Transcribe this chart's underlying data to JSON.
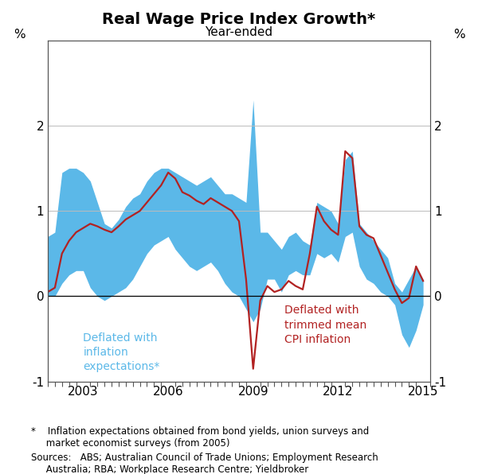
{
  "title": "Real Wage Price Index Growth*",
  "subtitle": "Year-ended",
  "ylabel_left": "%",
  "ylabel_right": "%",
  "ylim": [
    -1,
    3
  ],
  "yticks": [
    -1,
    0,
    1,
    2
  ],
  "footnote1": "*    Inflation expectations obtained from bond yields, union surveys and\n     market economist surveys (from 2005)",
  "footnote2": "Sources:   ABS; Australian Council of Trade Unions; Employment Research\n     Australia; RBA; Workplace Research Centre; Yieldbroker",
  "band_color": "#5BB8E8",
  "line_color": "#B22222",
  "label_blue": "Deflated with\ninflation\nexpectations*",
  "label_red": "Deflated with\ntrimmed mean\nCPI inflation",
  "dates_band": [
    2001.75,
    2002.0,
    2002.25,
    2002.5,
    2002.75,
    2003.0,
    2003.25,
    2003.5,
    2003.75,
    2004.0,
    2004.25,
    2004.5,
    2004.75,
    2005.0,
    2005.25,
    2005.5,
    2005.75,
    2006.0,
    2006.25,
    2006.5,
    2006.75,
    2007.0,
    2007.25,
    2007.5,
    2007.75,
    2008.0,
    2008.25,
    2008.5,
    2008.75,
    2009.0,
    2009.25,
    2009.5,
    2009.75,
    2010.0,
    2010.25,
    2010.5,
    2010.75,
    2011.0,
    2011.25,
    2011.5,
    2011.75,
    2012.0,
    2012.25,
    2012.5,
    2012.75,
    2013.0,
    2013.25,
    2013.5,
    2013.75,
    2014.0,
    2014.25,
    2014.5,
    2014.75,
    2015.0
  ],
  "band_upper": [
    0.7,
    0.75,
    1.45,
    1.5,
    1.5,
    1.45,
    1.35,
    1.1,
    0.85,
    0.8,
    0.9,
    1.05,
    1.15,
    1.2,
    1.35,
    1.45,
    1.5,
    1.5,
    1.45,
    1.4,
    1.35,
    1.3,
    1.35,
    1.4,
    1.3,
    1.2,
    1.2,
    1.15,
    1.1,
    2.3,
    0.75,
    0.75,
    0.65,
    0.55,
    0.7,
    0.75,
    0.65,
    0.6,
    1.1,
    1.05,
    1.0,
    0.85,
    1.6,
    1.7,
    0.85,
    0.75,
    0.65,
    0.55,
    0.45,
    0.15,
    0.05,
    0.2,
    0.35,
    0.2
  ],
  "band_lower": [
    0.0,
    0.0,
    0.15,
    0.25,
    0.3,
    0.3,
    0.1,
    0.0,
    -0.05,
    0.0,
    0.05,
    0.1,
    0.2,
    0.35,
    0.5,
    0.6,
    0.65,
    0.7,
    0.55,
    0.45,
    0.35,
    0.3,
    0.35,
    0.4,
    0.3,
    0.15,
    0.05,
    0.0,
    -0.15,
    -0.3,
    -0.15,
    0.2,
    0.2,
    0.05,
    0.25,
    0.3,
    0.25,
    0.25,
    0.5,
    0.45,
    0.5,
    0.4,
    0.7,
    0.75,
    0.35,
    0.2,
    0.15,
    0.05,
    0.0,
    -0.1,
    -0.45,
    -0.6,
    -0.4,
    -0.1
  ],
  "dates_line": [
    2001.75,
    2002.0,
    2002.25,
    2002.5,
    2002.75,
    2003.0,
    2003.25,
    2003.5,
    2003.75,
    2004.0,
    2004.25,
    2004.5,
    2004.75,
    2005.0,
    2005.25,
    2005.5,
    2005.75,
    2006.0,
    2006.25,
    2006.5,
    2006.75,
    2007.0,
    2007.25,
    2007.5,
    2007.75,
    2008.0,
    2008.25,
    2008.5,
    2008.75,
    2009.0,
    2009.25,
    2009.5,
    2009.75,
    2010.0,
    2010.25,
    2010.5,
    2010.75,
    2011.0,
    2011.25,
    2011.5,
    2011.75,
    2012.0,
    2012.25,
    2012.5,
    2012.75,
    2013.0,
    2013.25,
    2013.5,
    2013.75,
    2014.0,
    2014.25,
    2014.5,
    2014.75,
    2015.0
  ],
  "line_values": [
    0.05,
    0.1,
    0.5,
    0.65,
    0.75,
    0.8,
    0.85,
    0.82,
    0.78,
    0.75,
    0.82,
    0.9,
    0.95,
    1.0,
    1.1,
    1.2,
    1.3,
    1.45,
    1.38,
    1.22,
    1.18,
    1.12,
    1.08,
    1.15,
    1.1,
    1.05,
    1.0,
    0.88,
    0.2,
    -0.85,
    -0.05,
    0.12,
    0.05,
    0.08,
    0.18,
    0.12,
    0.08,
    0.5,
    1.05,
    0.88,
    0.78,
    0.72,
    1.7,
    1.62,
    0.82,
    0.72,
    0.68,
    0.48,
    0.28,
    0.08,
    -0.08,
    -0.02,
    0.35,
    0.18
  ],
  "xlim": [
    2001.75,
    2015.25
  ],
  "xticks": [
    2003,
    2006,
    2009,
    2012,
    2015
  ],
  "background_color": "#ffffff",
  "grid_color": "#bbbbbb",
  "spine_color": "#555555",
  "title_fontsize": 14,
  "subtitle_fontsize": 11,
  "tick_fontsize": 11,
  "annotation_fontsize": 10,
  "footnote_fontsize": 8.5
}
